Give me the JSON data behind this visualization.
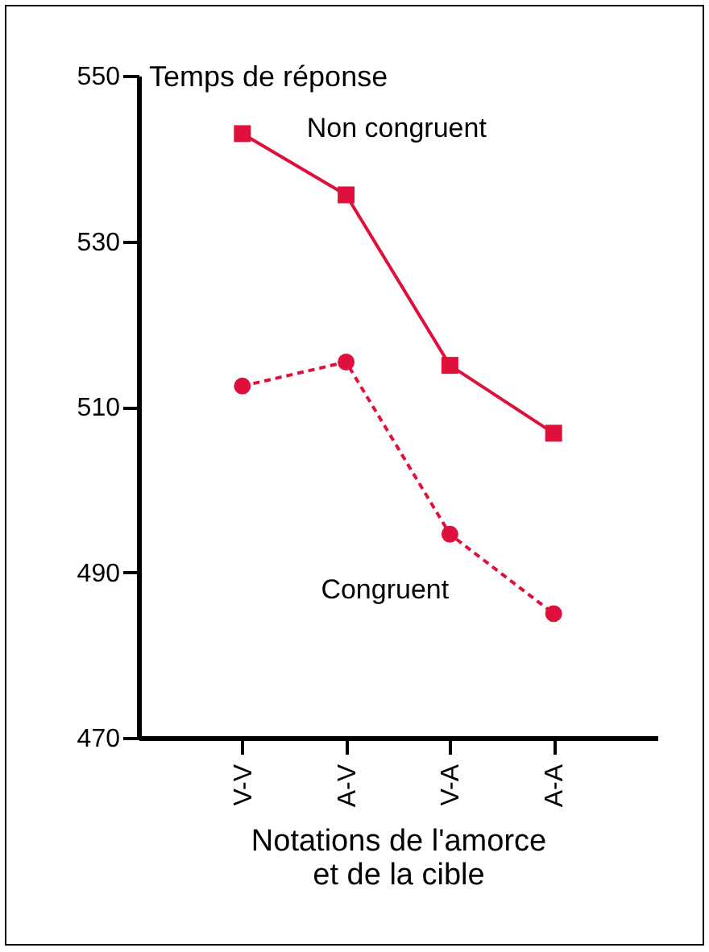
{
  "chart_data": {
    "type": "line",
    "xlabel": "Notations de l'amorce\net de la cible",
    "ylabel": "Temps de réponse",
    "categories": [
      "V-V",
      "A-V",
      "V-A",
      "A-A"
    ],
    "ylim": [
      470,
      550
    ],
    "yticks": [
      470,
      490,
      510,
      530,
      550
    ],
    "grid": false,
    "legend": false,
    "series": [
      {
        "name": "Non congruent",
        "color": "#e0103c",
        "marker": "square",
        "line_style": "solid",
        "values": [
          543,
          535.6,
          515,
          506.8
        ]
      },
      {
        "name": "Congruent",
        "color": "#e0103c",
        "marker": "circle",
        "line_style": "dashed",
        "values": [
          512.5,
          515.4,
          494.6,
          485
        ]
      }
    ]
  }
}
